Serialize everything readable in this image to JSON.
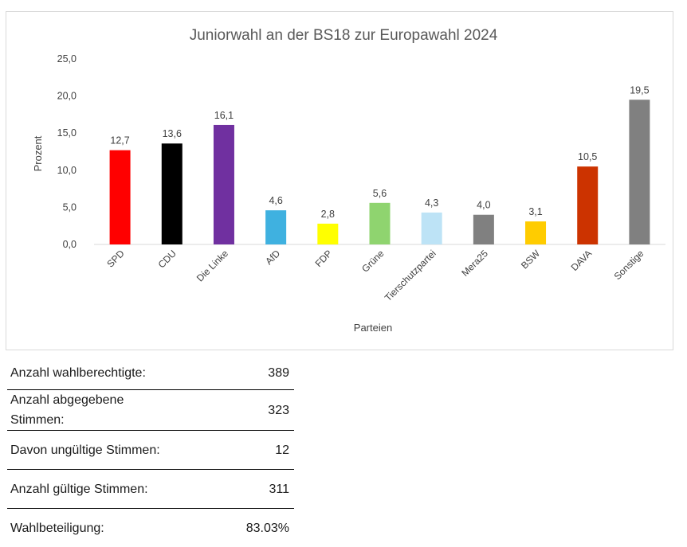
{
  "chart_data": {
    "type": "bar",
    "title": "Juniorwahl an der BS18 zur Europawahl 2024",
    "xlabel": "Parteien",
    "ylabel": "Prozent",
    "ylim": [
      0,
      25
    ],
    "yticks": [
      "0,0",
      "5,0",
      "10,0",
      "15,0",
      "20,0",
      "25,0"
    ],
    "grid": false,
    "categories": [
      "SPD",
      "CDU",
      "Die Linke",
      "AfD",
      "FDP",
      "Grüne",
      "Tierschutzpartei",
      "Mera25",
      "BSW",
      "DAVA",
      "Sonstige"
    ],
    "values": [
      12.7,
      13.6,
      16.1,
      4.6,
      2.8,
      5.6,
      4.3,
      4.0,
      3.1,
      10.5,
      19.5
    ],
    "value_labels": [
      "12,7",
      "13,6",
      "16,1",
      "4,6",
      "2,8",
      "5,6",
      "4,3",
      "4,0",
      "3,1",
      "10,5",
      "19,5"
    ],
    "colors": [
      "#ff0000",
      "#000000",
      "#7030a0",
      "#3fb1e0",
      "#ffff00",
      "#8fd46f",
      "#bde3f6",
      "#808080",
      "#ffcc00",
      "#cc3300",
      "#808080"
    ]
  },
  "stats": [
    {
      "label": "Anzahl wahlberechtigte:",
      "value": "389"
    },
    {
      "label": "Anzahl abgegebene Stimmen:",
      "value": "323"
    },
    {
      "label": "Davon ungültige Stimmen:",
      "value": "12"
    },
    {
      "label": "Anzahl gültige Stimmen:",
      "value": "311"
    },
    {
      "label": "Wahlbeteiligung:",
      "value": "83.03%"
    }
  ]
}
